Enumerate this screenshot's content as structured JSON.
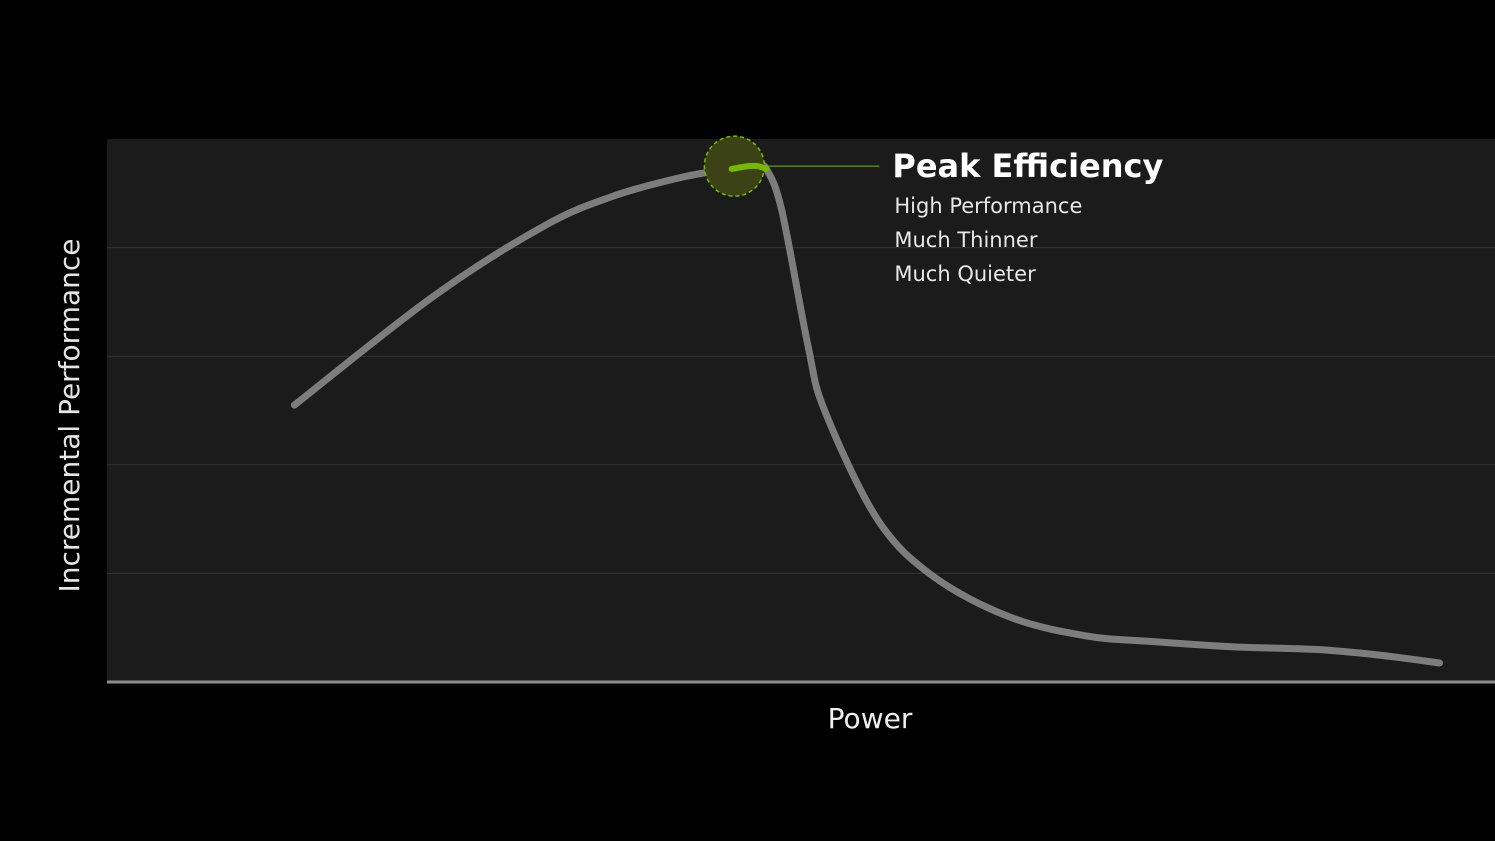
{
  "chart_data": {
    "type": "line",
    "xlabel": "Power",
    "ylabel": "Incremental Performance",
    "xlim": [
      0,
      100
    ],
    "ylim": [
      0,
      100
    ],
    "grid": true,
    "ticks_shown": false,
    "colors": {
      "background": "#000000",
      "plot_background": "#1b1b1b",
      "gridline": "#333333",
      "axis": "#8c8c8c",
      "curve": "#7d7d7d",
      "highlight": "#76b900",
      "marker_fill": "#3a4216",
      "text": "#ffffff"
    },
    "series": [
      {
        "x": [
          13.5,
          23.5,
          31.5,
          36.5,
          41.5,
          45,
          46.2,
          46.9,
          47.5,
          48.6,
          50.5,
          51.7,
          55.5,
          59.5,
          65,
          70.5,
          75,
          81,
          87,
          91.5,
          96
        ],
        "y": [
          51,
          71,
          84,
          89.5,
          93,
          94.5,
          95,
          95,
          94.5,
          87,
          62,
          50,
          30,
          19.5,
          12,
          8.5,
          7.5,
          6.5,
          6,
          5,
          3.5
        ]
      }
    ],
    "highlight_segment": {
      "x_start": 44.8,
      "x_end": 47.5
    },
    "annotations": [
      {
        "point": {
          "x": 45.2,
          "y": 95
        },
        "title": "Peak Efficiency",
        "lines": [
          "High Performance",
          "Much Thinner",
          "Much Quieter"
        ]
      }
    ]
  }
}
